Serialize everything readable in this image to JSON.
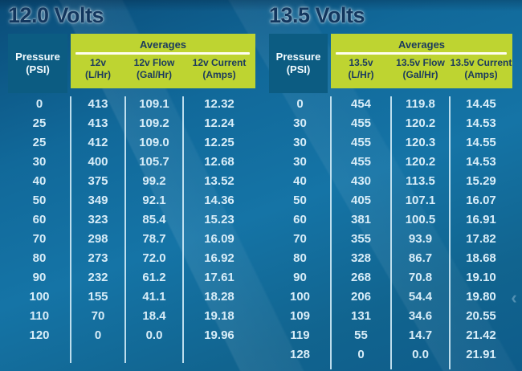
{
  "colors": {
    "title_text": "#12365e",
    "pressure_box": "#0c5c82",
    "pressure_text": "#f2fbff",
    "averages_box": "#bed431",
    "header_text_dark": "#1b3a5e",
    "underline": "#fffef0",
    "cell_text": "#d8edf8",
    "divider": "#cfeaf6"
  },
  "icons": {
    "prev_chevron": "‹"
  },
  "tables": [
    {
      "title": "12.0 Volts",
      "pressure_header": {
        "line1": "Pressure",
        "line2": "(PSI)"
      },
      "averages_label": "Averages",
      "columns": [
        {
          "line1": "12v",
          "line2": "(L/Hr)"
        },
        {
          "line1": "12v Flow",
          "line2": "(Gal/Hr)"
        },
        {
          "line1": "12v Current",
          "line2": "(Amps)"
        }
      ],
      "rows": [
        [
          "0",
          "413",
          "109.1",
          "12.32"
        ],
        [
          "25",
          "413",
          "109.2",
          "12.24"
        ],
        [
          "25",
          "412",
          "109.0",
          "12.25"
        ],
        [
          "30",
          "400",
          "105.7",
          "12.68"
        ],
        [
          "40",
          "375",
          "99.2",
          "13.52"
        ],
        [
          "50",
          "349",
          "92.1",
          "14.36"
        ],
        [
          "60",
          "323",
          "85.4",
          "15.23"
        ],
        [
          "70",
          "298",
          "78.7",
          "16.09"
        ],
        [
          "80",
          "273",
          "72.0",
          "16.92"
        ],
        [
          "90",
          "232",
          "61.2",
          "17.61"
        ],
        [
          "100",
          "155",
          "41.1",
          "18.28"
        ],
        [
          "110",
          "70",
          "18.4",
          "19.18"
        ],
        [
          "120",
          "0",
          "0.0",
          "19.96"
        ]
      ]
    },
    {
      "title": "13.5 Volts",
      "pressure_header": {
        "line1": "Pressure",
        "line2": "(PSI)"
      },
      "averages_label": "Averages",
      "columns": [
        {
          "line1": "13.5v",
          "line2": "(L/Hr)"
        },
        {
          "line1": "13.5v Flow",
          "line2": "(Gal/Hr)"
        },
        {
          "line1": "13.5v Current",
          "line2": "(Amps)"
        }
      ],
      "rows": [
        [
          "0",
          "454",
          "119.8",
          "14.45"
        ],
        [
          "30",
          "455",
          "120.2",
          "14.53"
        ],
        [
          "30",
          "455",
          "120.3",
          "14.55"
        ],
        [
          "30",
          "455",
          "120.2",
          "14.53"
        ],
        [
          "40",
          "430",
          "113.5",
          "15.29"
        ],
        [
          "50",
          "405",
          "107.1",
          "16.07"
        ],
        [
          "60",
          "381",
          "100.5",
          "16.91"
        ],
        [
          "70",
          "355",
          "93.9",
          "17.82"
        ],
        [
          "80",
          "328",
          "86.7",
          "18.68"
        ],
        [
          "90",
          "268",
          "70.8",
          "19.10"
        ],
        [
          "100",
          "206",
          "54.4",
          "19.80"
        ],
        [
          "109",
          "131",
          "34.6",
          "20.55"
        ],
        [
          "119",
          "55",
          "14.7",
          "21.42"
        ],
        [
          "128",
          "0",
          "0.0",
          "21.91"
        ]
      ]
    }
  ],
  "chart_data": [
    {
      "type": "table",
      "title": "12.0 Volts",
      "group_header": "Averages",
      "columns": [
        "Pressure (PSI)",
        "12v (L/Hr)",
        "12v Flow (Gal/Hr)",
        "12v Current (Amps)"
      ],
      "rows": [
        [
          0,
          413,
          109.1,
          12.32
        ],
        [
          25,
          413,
          109.2,
          12.24
        ],
        [
          25,
          412,
          109.0,
          12.25
        ],
        [
          30,
          400,
          105.7,
          12.68
        ],
        [
          40,
          375,
          99.2,
          13.52
        ],
        [
          50,
          349,
          92.1,
          14.36
        ],
        [
          60,
          323,
          85.4,
          15.23
        ],
        [
          70,
          298,
          78.7,
          16.09
        ],
        [
          80,
          273,
          72.0,
          16.92
        ],
        [
          90,
          232,
          61.2,
          17.61
        ],
        [
          100,
          155,
          41.1,
          18.28
        ],
        [
          110,
          70,
          18.4,
          19.18
        ],
        [
          120,
          0,
          0.0,
          19.96
        ]
      ]
    },
    {
      "type": "table",
      "title": "13.5 Volts",
      "group_header": "Averages",
      "columns": [
        "Pressure (PSI)",
        "13.5v (L/Hr)",
        "13.5v Flow (Gal/Hr)",
        "13.5v Current (Amps)"
      ],
      "rows": [
        [
          0,
          454,
          119.8,
          14.45
        ],
        [
          30,
          455,
          120.2,
          14.53
        ],
        [
          30,
          455,
          120.3,
          14.55
        ],
        [
          30,
          455,
          120.2,
          14.53
        ],
        [
          40,
          430,
          113.5,
          15.29
        ],
        [
          50,
          405,
          107.1,
          16.07
        ],
        [
          60,
          381,
          100.5,
          16.91
        ],
        [
          70,
          355,
          93.9,
          17.82
        ],
        [
          80,
          328,
          86.7,
          18.68
        ],
        [
          90,
          268,
          70.8,
          19.1
        ],
        [
          100,
          206,
          54.4,
          19.8
        ],
        [
          109,
          131,
          34.6,
          20.55
        ],
        [
          119,
          55,
          14.7,
          21.42
        ],
        [
          128,
          0,
          0.0,
          21.91
        ]
      ]
    }
  ]
}
